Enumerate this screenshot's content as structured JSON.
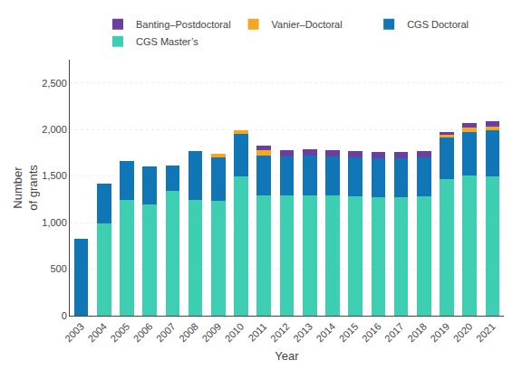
{
  "chart_data": {
    "type": "bar",
    "stacked": true,
    "xlabel": "Year",
    "ylabel": "Number\nof grants",
    "categories": [
      "2003",
      "2004",
      "2005",
      "2006",
      "2007",
      "2008",
      "2009",
      "2010",
      "2011",
      "2012",
      "2013",
      "2014",
      "2015",
      "2016",
      "2017",
      "2018",
      "2019",
      "2020",
      "2021"
    ],
    "series": [
      {
        "name": "CGS Master’s",
        "color": "#3ecfb2",
        "values": [
          0,
          990,
          1240,
          1200,
          1340,
          1240,
          1230,
          1500,
          1290,
          1290,
          1290,
          1290,
          1280,
          1270,
          1270,
          1280,
          1470,
          1510,
          1500
        ]
      },
      {
        "name": "CGS Doctoral",
        "color": "#1176b5",
        "values": [
          830,
          430,
          420,
          400,
          270,
          530,
          470,
          450,
          430,
          420,
          430,
          420,
          420,
          420,
          420,
          420,
          440,
          460,
          490
        ]
      },
      {
        "name": "Vanier–Doctoral",
        "color": "#f5a623",
        "values": [
          0,
          0,
          0,
          0,
          0,
          0,
          40,
          40,
          55,
          0,
          0,
          0,
          0,
          0,
          0,
          0,
          35,
          50,
          45
        ]
      },
      {
        "name": "Banting–Postdoctoral",
        "color": "#6b3fa0",
        "values": [
          0,
          0,
          0,
          0,
          0,
          0,
          0,
          0,
          55,
          65,
          65,
          65,
          65,
          65,
          65,
          65,
          30,
          45,
          50
        ]
      }
    ],
    "ylim": [
      0,
      2750
    ],
    "yticks": [
      0,
      500,
      {
        "value": 1000,
        "label": "1,000"
      },
      {
        "value": 1500,
        "label": "1,500"
      },
      {
        "value": 2000,
        "label": "2,000"
      },
      {
        "value": 2500,
        "label": "2,500"
      }
    ],
    "grid": true,
    "legend": "top"
  }
}
